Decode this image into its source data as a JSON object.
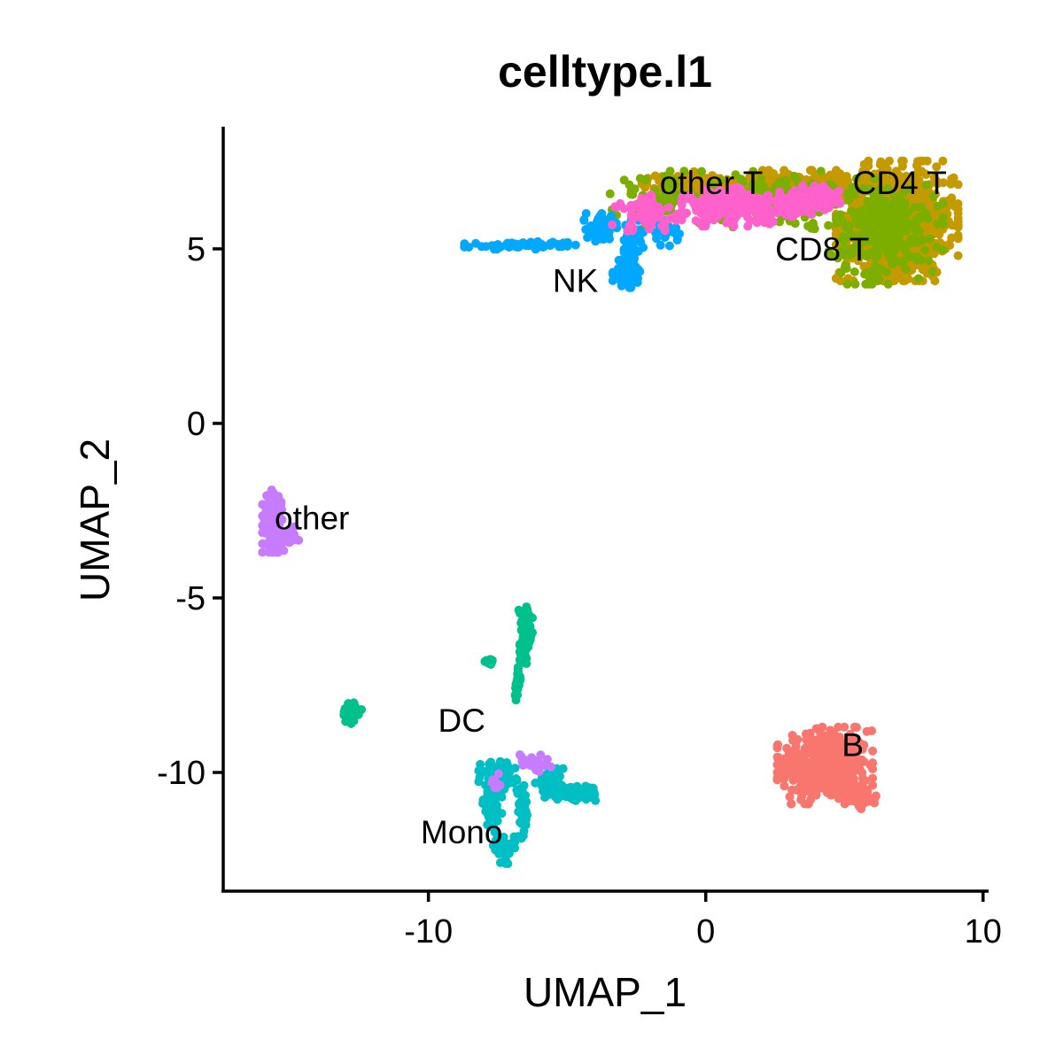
{
  "chart_data": {
    "type": "scatter",
    "title": "celltype.l1",
    "xlabel": "UMAP_1",
    "ylabel": "UMAP_2",
    "xlim": [
      -17.4,
      10.2
    ],
    "ylim": [
      -13.4,
      8.5
    ],
    "xticks": [
      -10,
      0,
      10
    ],
    "yticks": [
      -10,
      -5,
      0,
      5
    ],
    "xtick_labels": [
      "-10",
      "0",
      "10"
    ],
    "ytick_labels": [
      "-10",
      "-5",
      "0",
      "5"
    ],
    "grid": false,
    "legend": "none",
    "series": [
      {
        "name": "B",
        "color": "#F8766D",
        "label_pos": [
          5.3,
          -9.2
        ],
        "clusters": [
          {
            "center": [
              4.3,
              -9.8
            ],
            "spread": [
              1.25,
              0.8
            ],
            "count": 480
          },
          {
            "center": [
              5.6,
              -10.7
            ],
            "spread": [
              0.45,
              0.25
            ],
            "count": 50
          }
        ]
      },
      {
        "name": "CD4 T",
        "color": "#C49A00",
        "label_pos": [
          7.0,
          6.9
        ],
        "clusters": [
          {
            "center": [
              6.9,
              5.8
            ],
            "spread": [
              1.6,
              1.25
            ],
            "count": 900
          },
          {
            "center": [
              3.2,
              6.7
            ],
            "spread": [
              1.6,
              0.4
            ],
            "count": 300
          },
          {
            "center": [
              -0.5,
              6.8
            ],
            "spread": [
              1.4,
              0.3
            ],
            "count": 150
          }
        ]
      },
      {
        "name": "CD8 T",
        "color": "#7CAE00",
        "label_pos": [
          4.2,
          5.0
        ],
        "clusters": [
          {
            "center": [
              6.5,
              5.5
            ],
            "spread": [
              1.5,
              1.1
            ],
            "count": 260
          },
          {
            "center": [
              2.5,
              6.4
            ],
            "spread": [
              2.0,
              0.6
            ],
            "count": 160
          },
          {
            "center": [
              -1.8,
              6.4
            ],
            "spread": [
              1.2,
              0.6
            ],
            "count": 70
          }
        ]
      },
      {
        "name": "DC",
        "color": "#00C08B",
        "label_pos": [
          -8.8,
          -8.5
        ],
        "clusters": [
          {
            "center": [
              -6.5,
              -5.7
            ],
            "spread": [
              0.18,
              0.35
            ],
            "count": 60
          },
          {
            "center": [
              -6.5,
              -6.4
            ],
            "spread": [
              0.15,
              0.35
            ],
            "count": 40
          },
          {
            "center": [
              -6.8,
              -7.4
            ],
            "spread": [
              0.08,
              0.4
            ],
            "count": 25
          },
          {
            "center": [
              -12.8,
              -8.3
            ],
            "spread": [
              0.28,
              0.22
            ],
            "count": 55
          },
          {
            "center": [
              -7.8,
              -6.8
            ],
            "spread": [
              0.12,
              0.08
            ],
            "count": 10
          }
        ]
      },
      {
        "name": "Mono",
        "color": "#00BFC4",
        "label_pos": [
          -8.8,
          -11.7
        ],
        "clusters": [
          {
            "center": [
              -7.5,
              -10.1
            ],
            "spread": [
              0.5,
              0.3
            ],
            "count": 120
          },
          {
            "center": [
              -7.7,
              -10.9
            ],
            "spread": [
              0.25,
              0.6
            ],
            "count": 90
          },
          {
            "center": [
              -7.3,
              -12.2
            ],
            "spread": [
              0.3,
              0.3
            ],
            "count": 40
          },
          {
            "center": [
              -5.6,
              -10.3
            ],
            "spread": [
              0.4,
              0.3
            ],
            "count": 60
          },
          {
            "center": [
              -4.6,
              -10.6
            ],
            "spread": [
              0.6,
              0.15
            ],
            "count": 90
          },
          {
            "center": [
              -6.6,
              -11.2
            ],
            "spread": [
              0.2,
              0.6
            ],
            "count": 35
          }
        ]
      },
      {
        "name": "NK",
        "color": "#00A9FF",
        "label_pos": [
          -4.7,
          4.1
        ],
        "clusters": [
          {
            "center": [
              -6.5,
              5.1
            ],
            "spread": [
              1.6,
              0.08
            ],
            "count": 60
          },
          {
            "center": [
              -3.7,
              5.6
            ],
            "spread": [
              0.5,
              0.3
            ],
            "count": 55
          },
          {
            "center": [
              -2.8,
              4.3
            ],
            "spread": [
              0.4,
              0.3
            ],
            "count": 90
          },
          {
            "center": [
              -2.6,
              5.2
            ],
            "spread": [
              0.25,
              0.5
            ],
            "count": 40
          },
          {
            "center": [
              -1.5,
              5.5
            ],
            "spread": [
              0.4,
              0.3
            ],
            "count": 25
          }
        ]
      },
      {
        "name": "other",
        "color": "#C77CFF",
        "label_pos": [
          -14.2,
          -2.7
        ],
        "clusters": [
          {
            "center": [
              -15.6,
              -2.8
            ],
            "spread": [
              0.28,
              0.65
            ],
            "count": 160
          },
          {
            "center": [
              -15.0,
              -3.2
            ],
            "spread": [
              0.25,
              0.2
            ],
            "count": 25
          },
          {
            "center": [
              -6.2,
              -9.7
            ],
            "spread": [
              0.45,
              0.2
            ],
            "count": 30
          },
          {
            "center": [
              -7.6,
              -10.3
            ],
            "spread": [
              0.15,
              0.25
            ],
            "count": 10
          }
        ]
      },
      {
        "name": "other T",
        "color": "#FF61CC",
        "label_pos": [
          0.2,
          6.9
        ],
        "clusters": [
          {
            "center": [
              1.2,
              6.2
            ],
            "spread": [
              1.5,
              0.4
            ],
            "count": 260
          },
          {
            "center": [
              -2.0,
              6.0
            ],
            "spread": [
              1.0,
              0.4
            ],
            "count": 60
          },
          {
            "center": [
              3.8,
              6.4
            ],
            "spread": [
              0.8,
              0.3
            ],
            "count": 80
          }
        ]
      }
    ]
  }
}
